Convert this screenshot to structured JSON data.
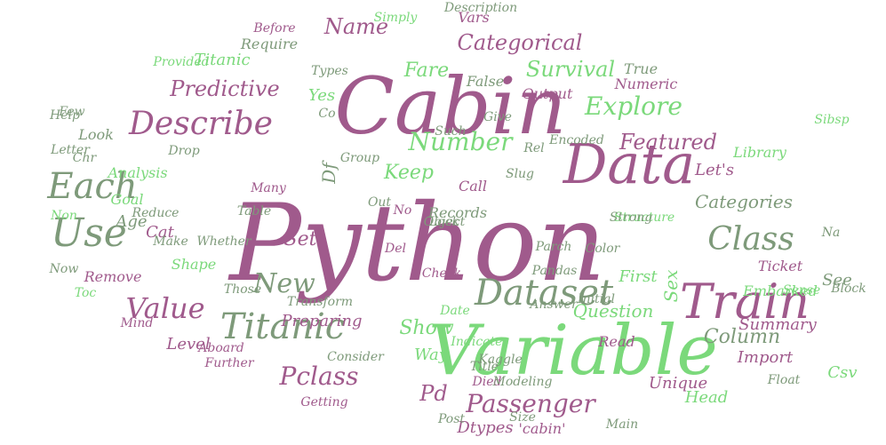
{
  "palette": {
    "purple": "#a05a8c",
    "green": "#7bd97b",
    "sage": "#7e9a7a",
    "lilac": "#c89bbf",
    "mint": "#a8e6a8"
  },
  "words": [
    {
      "text": "Python",
      "color": "purple",
      "vertical": false
    },
    {
      "text": "Cabin",
      "color": "purple",
      "vertical": false
    },
    {
      "text": "Variable",
      "color": "green",
      "vertical": false
    },
    {
      "text": "Data",
      "color": "purple",
      "vertical": false
    },
    {
      "text": "Train",
      "color": "purple",
      "vertical": false
    },
    {
      "text": "Titanic",
      "color": "sage",
      "vertical": false
    },
    {
      "text": "Dataset",
      "color": "sage",
      "vertical": false
    },
    {
      "text": "Use",
      "color": "sage",
      "vertical": false
    },
    {
      "text": "Each",
      "color": "sage",
      "vertical": false
    },
    {
      "text": "Describe",
      "color": "purple",
      "vertical": false
    },
    {
      "text": "Class",
      "color": "sage",
      "vertical": false
    },
    {
      "text": "Value",
      "color": "purple",
      "vertical": false
    },
    {
      "text": "New",
      "color": "sage",
      "vertical": false
    },
    {
      "text": "Explore",
      "color": "green",
      "vertical": false
    },
    {
      "text": "Number",
      "color": "green",
      "vertical": false
    },
    {
      "text": "Pclass",
      "color": "purple",
      "vertical": false
    },
    {
      "text": "Passenger",
      "color": "purple",
      "vertical": false
    },
    {
      "text": "Featured",
      "color": "purple",
      "vertical": false
    },
    {
      "text": "Categorical",
      "color": "purple",
      "vertical": false
    },
    {
      "text": "Survival",
      "color": "green",
      "vertical": false
    },
    {
      "text": "Predictive",
      "color": "purple",
      "vertical": false
    },
    {
      "text": "Titanic",
      "color": "green",
      "vertical": false
    },
    {
      "text": "Name",
      "color": "purple",
      "vertical": false
    },
    {
      "text": "Fare",
      "color": "green",
      "vertical": false
    },
    {
      "text": "Column",
      "color": "sage",
      "vertical": false
    },
    {
      "text": "Categories",
      "color": "sage",
      "vertical": false
    },
    {
      "text": "Question",
      "color": "green",
      "vertical": false
    },
    {
      "text": "Summary",
      "color": "purple",
      "vertical": false
    },
    {
      "text": "Import",
      "color": "purple",
      "vertical": false
    },
    {
      "text": "Ticket",
      "color": "purple",
      "vertical": false
    },
    {
      "text": "Embarked",
      "color": "green",
      "vertical": false
    },
    {
      "text": "Unique",
      "color": "purple",
      "vertical": false
    },
    {
      "text": "Pd",
      "color": "purple",
      "vertical": false
    },
    {
      "text": "Df",
      "color": "sage",
      "vertical": false
    },
    {
      "text": "Set",
      "color": "purple",
      "vertical": false
    },
    {
      "text": "Keep",
      "color": "green",
      "vertical": false
    },
    {
      "text": "Show",
      "color": "green",
      "vertical": false
    },
    {
      "text": "Sex",
      "color": "green",
      "vertical": false
    },
    {
      "text": "First",
      "color": "green",
      "vertical": false
    },
    {
      "text": "Age",
      "color": "sage",
      "vertical": false
    },
    {
      "text": "Level",
      "color": "purple",
      "vertical": false
    },
    {
      "text": "Analysis",
      "color": "green",
      "vertical": false
    },
    {
      "text": "Remove",
      "color": "purple",
      "vertical": false
    },
    {
      "text": "Shape",
      "color": "green",
      "vertical": false
    },
    {
      "text": "Require",
      "color": "sage",
      "vertical": false
    },
    {
      "text": "Yes",
      "color": "green",
      "vertical": false
    },
    {
      "text": "Look",
      "color": "sage",
      "vertical": false
    },
    {
      "text": "Records",
      "color": "sage",
      "vertical": false
    },
    {
      "text": "Call",
      "color": "purple",
      "vertical": false
    },
    {
      "text": "Numeric",
      "color": "purple",
      "vertical": false
    },
    {
      "text": "Let's",
      "color": "purple",
      "vertical": false
    },
    {
      "text": "Library",
      "color": "green",
      "vertical": false
    },
    {
      "text": "Structure",
      "color": "green",
      "vertical": false
    },
    {
      "text": "Preparing",
      "color": "purple",
      "vertical": false
    },
    {
      "text": "Transform",
      "color": "sage",
      "vertical": false
    },
    {
      "text": "Read",
      "color": "purple",
      "vertical": false
    },
    {
      "text": "Way",
      "color": "green",
      "vertical": false
    },
    {
      "text": "Dtypes",
      "color": "purple",
      "vertical": false
    },
    {
      "text": "Head",
      "color": "green",
      "vertical": false
    },
    {
      "text": "Cat",
      "color": "purple",
      "vertical": false
    },
    {
      "text": "Output",
      "color": "purple",
      "vertical": false
    },
    {
      "text": "Vars",
      "color": "purple",
      "vertical": false
    },
    {
      "text": "True",
      "color": "sage",
      "vertical": false
    },
    {
      "text": "Csv",
      "color": "green",
      "vertical": false
    },
    {
      "text": "See",
      "color": "sage",
      "vertical": false
    },
    {
      "text": "Na",
      "color": "sage",
      "vertical": false
    },
    {
      "text": "Sense",
      "color": "green",
      "vertical": false
    },
    {
      "text": "Sibsp",
      "color": "green",
      "vertical": false
    },
    {
      "text": "Goal",
      "color": "green",
      "vertical": false
    },
    {
      "text": "Non",
      "color": "green",
      "vertical": false
    },
    {
      "text": "Toc",
      "color": "green",
      "vertical": false
    },
    {
      "text": "Mind",
      "color": "purple",
      "vertical": false
    },
    {
      "text": "Now",
      "color": "sage",
      "vertical": false
    },
    {
      "text": "Few",
      "color": "sage",
      "vertical": false
    },
    {
      "text": "Help",
      "color": "sage",
      "vertical": false
    },
    {
      "text": "Letter",
      "color": "sage",
      "vertical": false
    },
    {
      "text": "Chr",
      "color": "sage",
      "vertical": false
    },
    {
      "text": "Make",
      "color": "sage",
      "vertical": false
    },
    {
      "text": "Whether",
      "color": "sage",
      "vertical": false
    },
    {
      "text": "Aboard",
      "color": "purple",
      "vertical": false
    },
    {
      "text": "Those",
      "color": "sage",
      "vertical": false
    },
    {
      "text": "Further",
      "color": "purple",
      "vertical": false
    },
    {
      "text": "Consider",
      "color": "sage",
      "vertical": false
    },
    {
      "text": "Getting",
      "color": "purple",
      "vertical": false
    },
    {
      "text": "Died",
      "color": "purple",
      "vertical": false
    },
    {
      "text": "Modeling",
      "color": "sage",
      "vertical": false
    },
    {
      "text": "'cabin'",
      "color": "purple",
      "vertical": false
    },
    {
      "text": "Kaggle",
      "color": "sage",
      "vertical": false
    },
    {
      "text": "Pandas",
      "color": "sage",
      "vertical": false
    },
    {
      "text": "Parch",
      "color": "sage",
      "vertical": false
    },
    {
      "text": "Check",
      "color": "purple",
      "vertical": false
    },
    {
      "text": "Date",
      "color": "green",
      "vertical": false
    },
    {
      "text": "Del",
      "color": "purple",
      "vertical": false
    },
    {
      "text": "No",
      "color": "purple",
      "vertical": false
    },
    {
      "text": "Group",
      "color": "sage",
      "vertical": false
    },
    {
      "text": "Many",
      "color": "purple",
      "vertical": false
    },
    {
      "text": "Strong",
      "color": "sage",
      "vertical": false
    },
    {
      "text": "Slug",
      "color": "sage",
      "vertical": false
    },
    {
      "text": "Give",
      "color": "sage",
      "vertical": false
    },
    {
      "text": "False",
      "color": "sage",
      "vertical": false
    },
    {
      "text": "Description",
      "color": "sage",
      "vertical": false
    },
    {
      "text": "Before",
      "color": "purple",
      "vertical": false
    },
    {
      "text": "Provided",
      "color": "green",
      "vertical": false
    },
    {
      "text": "Indicates",
      "color": "green",
      "vertical": false
    },
    {
      "text": "Title",
      "color": "sage",
      "vertical": false
    },
    {
      "text": "Post",
      "color": "sage",
      "vertical": false
    },
    {
      "text": "Such",
      "color": "sage",
      "vertical": false
    },
    {
      "text": "Answer",
      "color": "sage",
      "vertical": false
    },
    {
      "text": "Initial",
      "color": "sage",
      "vertical": false
    },
    {
      "text": "Float",
      "color": "sage",
      "vertical": false
    },
    {
      "text": "Block",
      "color": "sage",
      "vertical": false
    },
    {
      "text": "Simply",
      "color": "green",
      "vertical": false
    },
    {
      "text": "Types",
      "color": "sage",
      "vertical": false
    },
    {
      "text": "Encoded",
      "color": "sage",
      "vertical": false
    },
    {
      "text": "Color",
      "color": "sage",
      "vertical": false
    },
    {
      "text": "Rel",
      "color": "sage",
      "vertical": false
    },
    {
      "text": "Size",
      "color": "sage",
      "vertical": false
    },
    {
      "text": "Main",
      "color": "sage",
      "vertical": false
    },
    {
      "text": "Table",
      "color": "sage",
      "vertical": false
    },
    {
      "text": "Reduce",
      "color": "sage",
      "vertical": false
    },
    {
      "text": "Co",
      "color": "sage",
      "vertical": false
    },
    {
      "text": "Out",
      "color": "sage",
      "vertical": false
    },
    {
      "text": "Drop",
      "color": "sage",
      "vertical": false
    },
    {
      "text": "Object",
      "color": "sage",
      "vertical": false
    },
    {
      "text": "Lock",
      "color": "sage",
      "vertical": false
    }
  ]
}
